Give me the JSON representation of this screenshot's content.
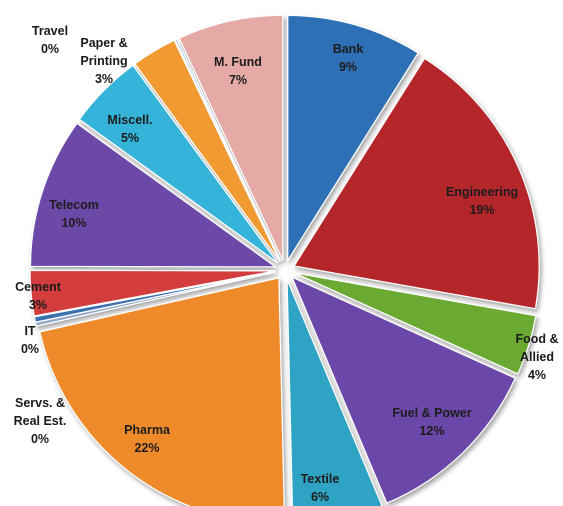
{
  "chart_data": {
    "type": "pie",
    "title": "",
    "slices": [
      {
        "name": "Bank",
        "value": 9,
        "label": "9%",
        "color": "#2e6fb5"
      },
      {
        "name": "Engineering",
        "value": 19,
        "label": "19%",
        "color": "#b4282b"
      },
      {
        "name": "Food & Allied",
        "value": 4,
        "label": "4%",
        "color": "#6aaa32"
      },
      {
        "name": "Fuel & Power",
        "value": 12,
        "label": "12%",
        "color": "#6a46a8"
      },
      {
        "name": "Textile",
        "value": 6,
        "label": "6%",
        "color": "#2ea3c3"
      },
      {
        "name": "Pharma",
        "value": 22,
        "label": "22%",
        "color": "#ee8a2a"
      },
      {
        "name": "Servs. & Real Est.",
        "value": 0.25,
        "label": "0%",
        "color": "#8ea5c6"
      },
      {
        "name": "IT",
        "value": 0.35,
        "label": "0%",
        "color": "#3c6fb0"
      },
      {
        "name": "Cement",
        "value": 3,
        "label": "3%",
        "color": "#d33d3d"
      },
      {
        "name": "Telecom",
        "value": 10,
        "label": "10%",
        "color": "#6c4aa8"
      },
      {
        "name": "Miscell.",
        "value": 5,
        "label": "5%",
        "color": "#34b3d9"
      },
      {
        "name": "Paper & Printing",
        "value": 3,
        "label": "3%",
        "color": "#f29a30"
      },
      {
        "name": "Travel",
        "value": 0.15,
        "label": "0%",
        "color": "#b4c8e2"
      },
      {
        "name": "M. Fund",
        "value": 7,
        "label": "7%",
        "color": "#e6aaa6"
      }
    ],
    "legend": "none"
  }
}
